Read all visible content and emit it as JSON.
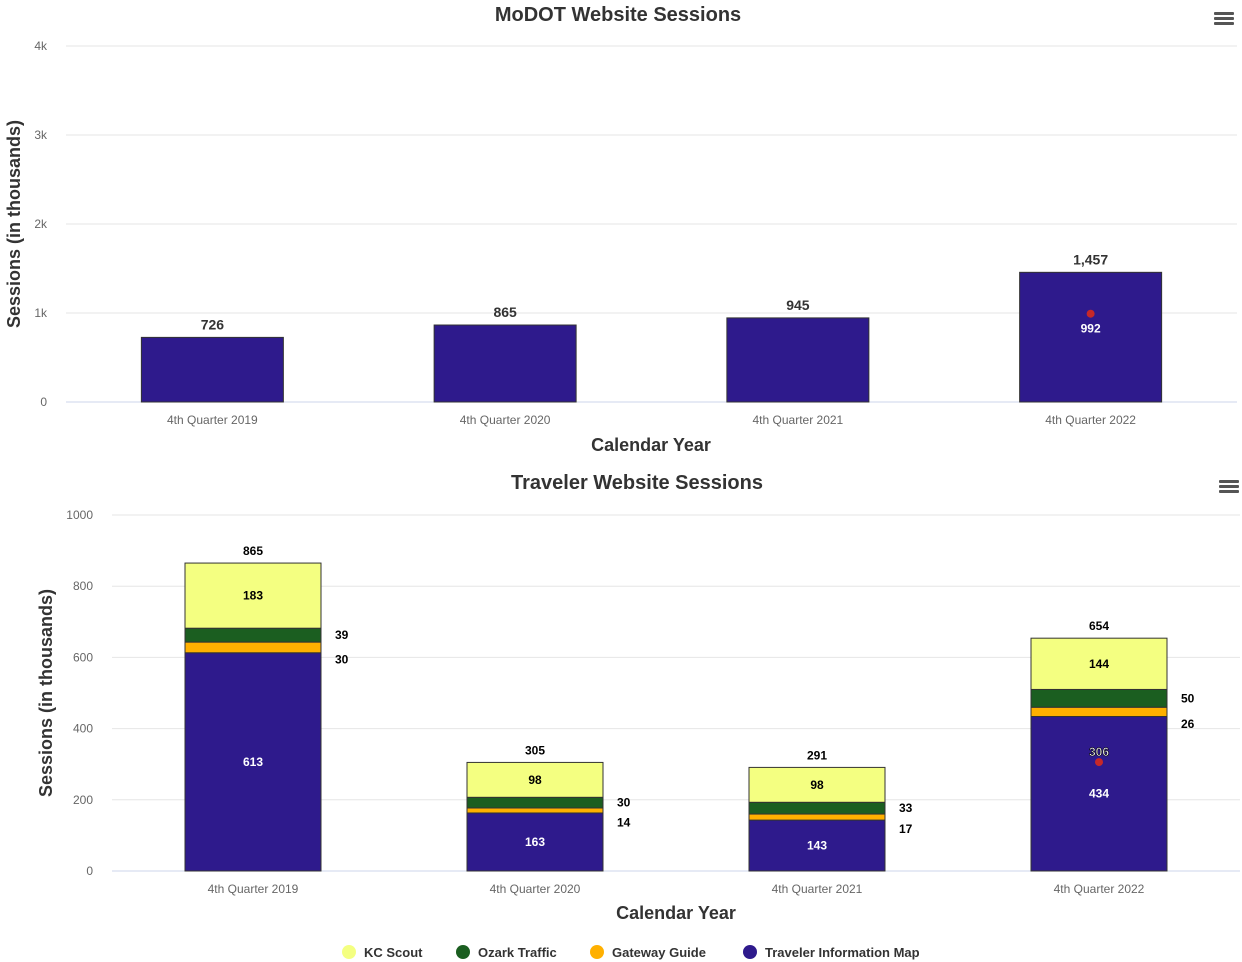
{
  "colors": {
    "tim": "#2e1a8c",
    "gateway": "#ffb000",
    "ozark": "#1b5e20",
    "kc": "#f4ff81",
    "marker": "#c62828",
    "grid": "#e6e6e6",
    "axis": "#ccd6eb"
  },
  "menu_icon": "hamburger-menu-icon",
  "chart_data": [
    {
      "type": "bar",
      "title": "MoDOT Website Sessions",
      "xlabel": "Calendar Year",
      "ylabel": "Sessions (in thousands)",
      "categories": [
        "4th Quarter 2019",
        "4th Quarter 2020",
        "4th Quarter 2021",
        "4th Quarter 2022"
      ],
      "values": [
        726,
        865,
        945,
        1457
      ],
      "value_labels": [
        "726",
        "865",
        "945",
        "1,457"
      ],
      "ylim": [
        0,
        4000
      ],
      "yticks": [
        0,
        1000,
        2000,
        3000,
        4000
      ],
      "ytick_labels": [
        "0",
        "1k",
        "2k",
        "3k",
        "4k"
      ],
      "grid": true,
      "annotation": {
        "category": "4th Quarter 2022",
        "value": 992,
        "label": "992"
      }
    },
    {
      "type": "bar",
      "stacked": true,
      "title": "Traveler Website Sessions",
      "xlabel": "Calendar Year",
      "ylabel": "Sessions (in thousands)",
      "categories": [
        "4th Quarter 2019",
        "4th Quarter 2020",
        "4th Quarter 2021",
        "4th Quarter 2022"
      ],
      "series": [
        {
          "name": "Traveler Information Map",
          "values": [
            613,
            163,
            143,
            434
          ]
        },
        {
          "name": "Gateway Guide",
          "values": [
            30,
            14,
            17,
            26
          ]
        },
        {
          "name": "Ozark Traffic",
          "values": [
            39,
            30,
            33,
            50
          ]
        },
        {
          "name": "KC Scout",
          "values": [
            183,
            98,
            98,
            144
          ]
        }
      ],
      "totals": [
        865,
        305,
        291,
        654
      ],
      "ylim": [
        0,
        1000
      ],
      "yticks": [
        0,
        200,
        400,
        600,
        800,
        1000
      ],
      "ytick_labels": [
        "0",
        "200",
        "400",
        "600",
        "800",
        "1000"
      ],
      "grid": true,
      "legend": {
        "placement": "bottom",
        "order": [
          "KC Scout",
          "Ozark Traffic",
          "Gateway Guide",
          "Traveler Information Map"
        ]
      },
      "annotation": {
        "category": "4th Quarter 2022",
        "value": 306,
        "label": "306"
      }
    }
  ]
}
